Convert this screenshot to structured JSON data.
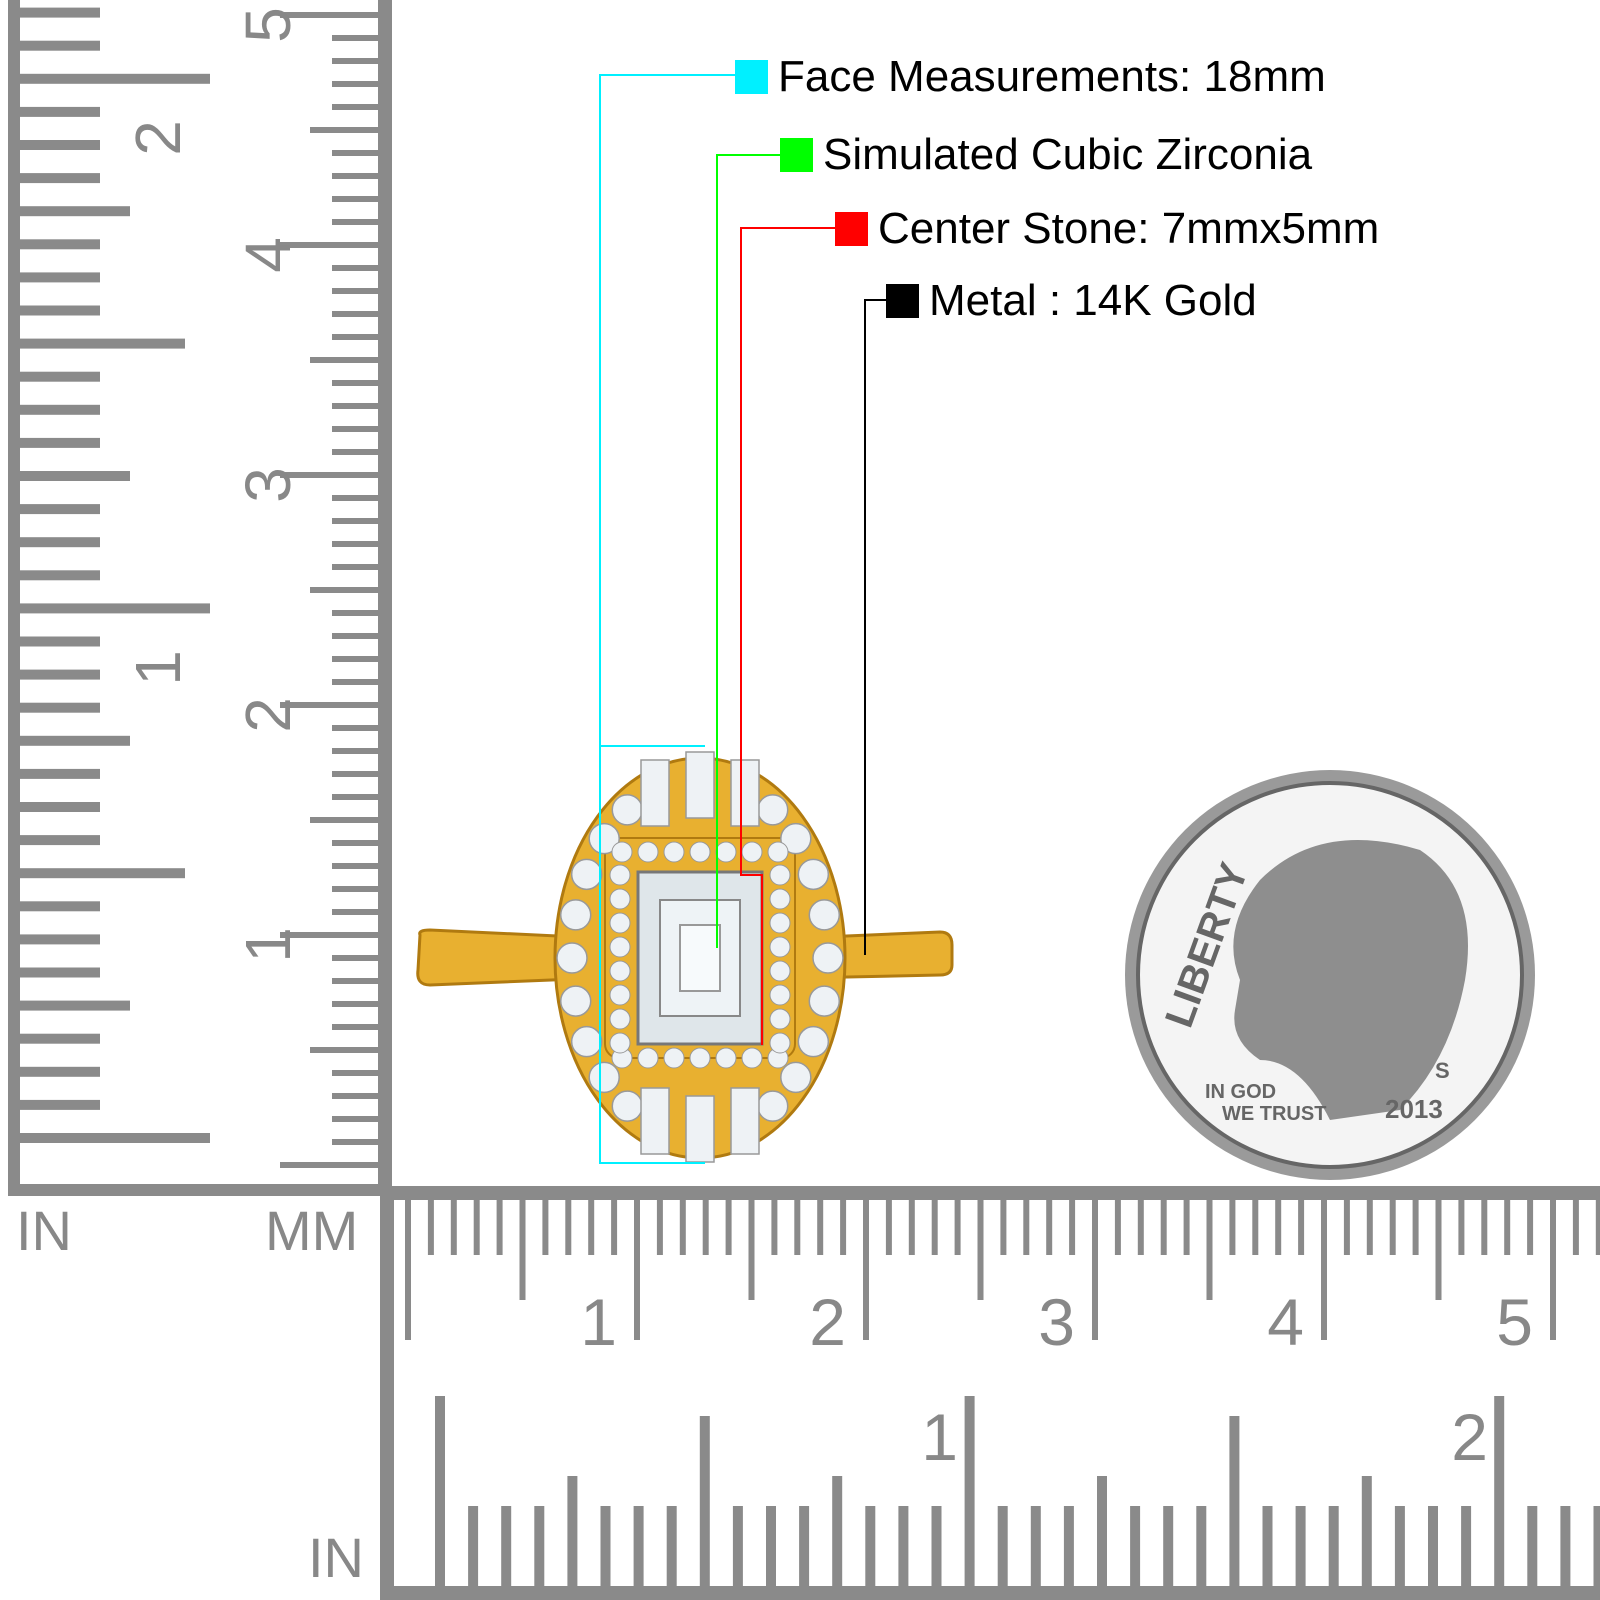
{
  "annotations": [
    {
      "label": "Face Measurements: 18mm",
      "color": "#00f0ff"
    },
    {
      "label": "Simulated Cubic Zirconia",
      "color": "#00ff00"
    },
    {
      "label": "Center Stone: 7mmx5mm",
      "color": "#ff0000"
    },
    {
      "label": "Metal : 14K Gold",
      "color": "#000000"
    }
  ],
  "ruler": {
    "color": "#8a8a8a",
    "left_unit_in": "IN",
    "left_unit_mm": "MM",
    "bottom_unit_in": "IN",
    "cm_labels": [
      "1",
      "2",
      "3",
      "4",
      "5"
    ],
    "inch_labels": [
      "1",
      "2"
    ]
  },
  "coin": {
    "legend": "LIBERTY",
    "motto_line1": "IN GOD",
    "motto_line2": "WE TRUST",
    "year": "2013",
    "mint_mark": "S"
  },
  "ring": {
    "metal_color": "#e8b030",
    "stone_color": "#eef2f5"
  }
}
